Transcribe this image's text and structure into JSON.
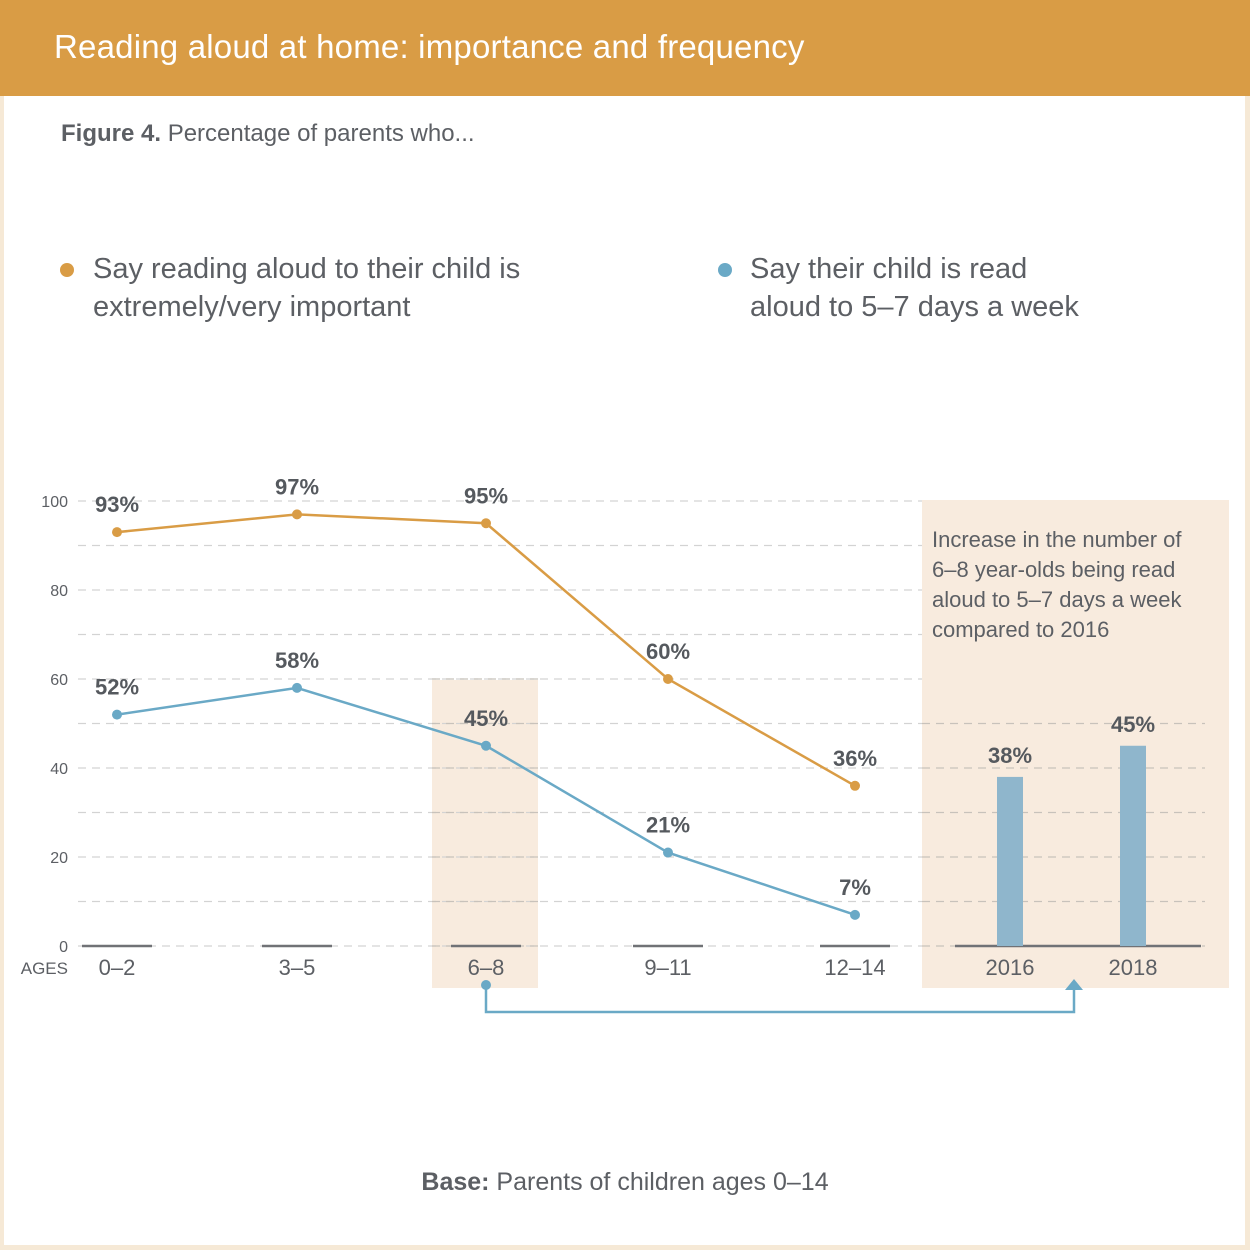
{
  "header": {
    "title": "Reading aloud at home: importance and frequency"
  },
  "subtitle": {
    "figure": "Figure 4.",
    "text": " Percentage of parents who..."
  },
  "legend": [
    {
      "label": "Say reading aloud to their child is\nextremely/very important",
      "color": "#d99c45"
    },
    {
      "label": "Say their child is read\naloud to 5–7 days a week",
      "color": "#6aa9c6"
    }
  ],
  "footer": {
    "bold": "Base:",
    "text": " Parents of children ages 0–14"
  },
  "colors": {
    "importance": "#d99c45",
    "read_aloud": "#6aa9c6",
    "bar": "#8fb6cc",
    "highlight": "#f8ebde",
    "baseline": "#707276",
    "grid": "#d3d3d3"
  },
  "chart_data": [
    {
      "type": "line",
      "title": "Percentage of parents who...",
      "xlabel": "AGES",
      "ylabel": "",
      "categories": [
        "0–2",
        "3–5",
        "6–8",
        "9–11",
        "12–14"
      ],
      "y_ticks": [
        0,
        20,
        40,
        60,
        80,
        100
      ],
      "ylim": [
        0,
        100
      ],
      "grid": true,
      "grid_step": 10,
      "legend_position": "top",
      "highlighted_category": "6–8",
      "series": [
        {
          "name": "Say reading aloud to their child is extremely/very important",
          "values": [
            93,
            97,
            95,
            60,
            36
          ],
          "labels": [
            "93%",
            "97%",
            "95%",
            "60%",
            "36%"
          ]
        },
        {
          "name": "Say their child is read aloud to 5–7 days a week",
          "values": [
            52,
            58,
            45,
            21,
            7
          ],
          "labels": [
            "52%",
            "58%",
            "45%",
            "21%",
            "7%"
          ]
        }
      ]
    },
    {
      "type": "bar",
      "title": "Increase in the number of 6–8 year-olds being read aloud to 5–7 days a week compared to 2016",
      "title_lines": [
        "Increase in the number of",
        "6–8 year-olds being read",
        "aloud to 5–7 days a week",
        "compared to 2016"
      ],
      "categories": [
        "2016",
        "2018"
      ],
      "values": [
        38,
        45
      ],
      "labels": [
        "38%",
        "45%"
      ],
      "ylim": [
        0,
        100
      ],
      "annotation": "Arrow connecting age 6–8 (read aloud series) to the 2016 vs 2018 comparison"
    }
  ]
}
